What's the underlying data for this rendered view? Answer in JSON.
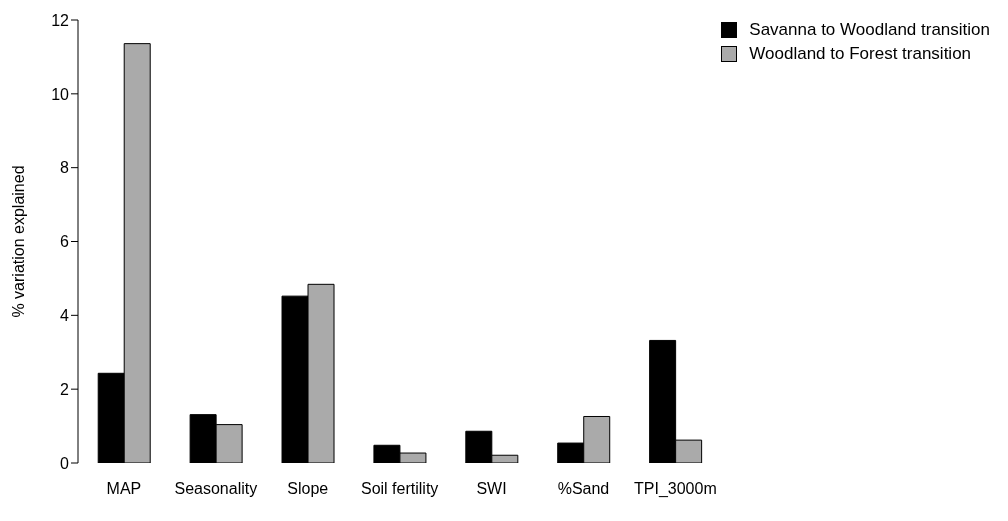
{
  "chart_data": {
    "type": "bar",
    "ylabel": "% variation explained",
    "categories": [
      "MAP",
      "Seasonality",
      "Slope",
      "Soil fertility",
      "SWI",
      "%Sand",
      "TPI_3000m"
    ],
    "series": [
      {
        "name": "Savanna to Woodland transition",
        "color": "#000000",
        "values": [
          2.43,
          1.31,
          4.52,
          0.48,
          0.86,
          0.54,
          3.32
        ]
      },
      {
        "name": "Woodland to Forest transition",
        "color": "#aaaaaa",
        "values": [
          11.36,
          1.04,
          4.84,
          0.27,
          0.21,
          1.26,
          0.62
        ]
      }
    ],
    "ylim": [
      0,
      12
    ],
    "yticks": [
      0,
      2,
      4,
      6,
      8,
      10,
      12
    ],
    "grid": false,
    "legend": "top right"
  }
}
